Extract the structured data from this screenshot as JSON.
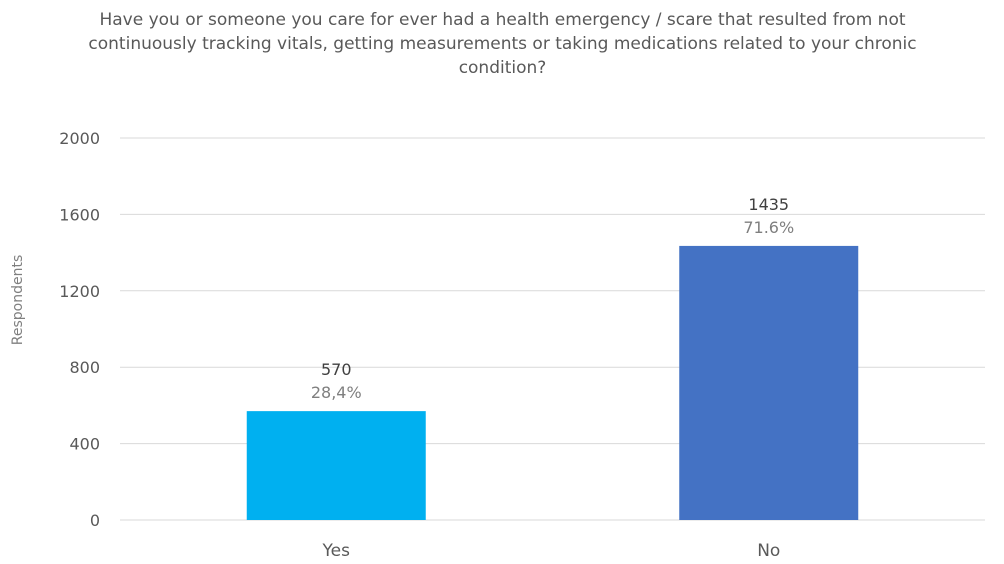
{
  "chart_data": {
    "type": "bar",
    "title": "Have you or someone you care for ever had a health emergency / scare that resulted from not continuously  tracking vitals, getting measurements or taking medications related to your chronic condition?",
    "ylabel": "Respondents",
    "xlabel": "",
    "categories": [
      "Yes",
      "No"
    ],
    "values": [
      570,
      1435
    ],
    "value_labels": [
      "570",
      "1435"
    ],
    "percent_labels": [
      "28,4%",
      "71.6%"
    ],
    "colors": [
      "#00B0F0",
      "#4472C4"
    ],
    "ylim": [
      0,
      2000
    ],
    "yticks": [
      0,
      400,
      800,
      1200,
      1600,
      2000
    ],
    "ytick_labels": [
      "0",
      "400",
      "800",
      "1200",
      "1600",
      "2000"
    ],
    "grid": true,
    "legend": "none"
  }
}
